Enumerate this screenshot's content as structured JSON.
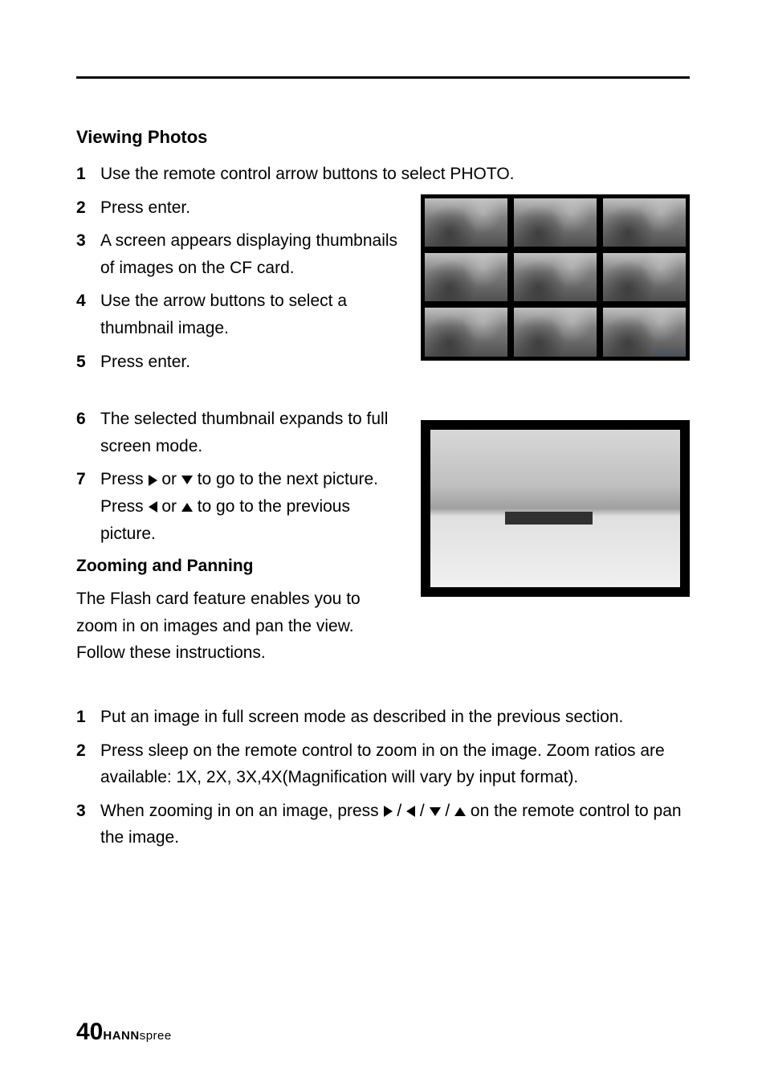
{
  "section": {
    "title": "Viewing Photos",
    "steps_block1": [
      {
        "num": "1",
        "text": "Use the remote control arrow buttons to select PHOTO."
      },
      {
        "num": "2",
        "text": "Press enter."
      },
      {
        "num": "3",
        "text": "A screen appears displaying thumbnails of images on the CF card."
      },
      {
        "num": "4",
        "text": "Use the arrow buttons to select a thumbnail image."
      },
      {
        "num": "5",
        "text": "Press enter."
      }
    ],
    "steps_block2": [
      {
        "num": "6",
        "text": "The selected thumbnail expands to full screen mode."
      }
    ],
    "step7": {
      "num": "7",
      "prefix": "Press ",
      "mid1": " or ",
      "text1": " to go to the next picture. Press ",
      "mid2": " or ",
      "text2": " to go to the previous picture."
    },
    "sub_heading": "Zooming and Panning",
    "sub_body": "The Flash card feature enables you to zoom in on images and pan the view. Follow these instructions.",
    "steps_block3": [
      {
        "num": "1",
        "text": "Put an image in full screen mode as described in the previous section."
      },
      {
        "num": "2",
        "text": "Press sleep on the remote control to zoom in on the image. Zoom ratios are available: 1X, 2X, 3X,4X(Magnification will vary by input format)."
      }
    ],
    "step3b": {
      "num": "3",
      "prefix": "When zooming in on an image, press ",
      "sep": " / ",
      "suffix": " on the remote control to pan the image."
    },
    "thumbnail_page_label": "PAGE\n01/04"
  },
  "footer": {
    "page_num": "40",
    "brand_bold": "HANN",
    "brand_light": "spree"
  }
}
